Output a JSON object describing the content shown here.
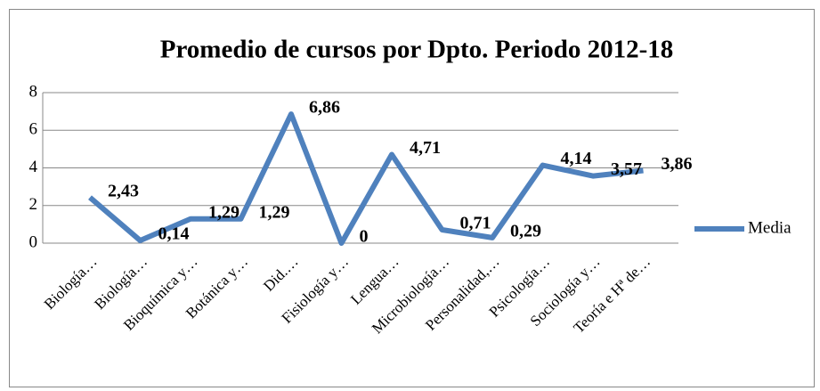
{
  "chart_data": {
    "type": "line",
    "title": "Promedio de cursos por Dpto. Periodo 2012-18",
    "categories": [
      "Biología…",
      "Biología…",
      "Bioquímica y…",
      "Botánica y…",
      "Did.…",
      "Fisiología y…",
      "Lengua…",
      "Microbiología…",
      "Personalidad,…",
      "Psicología…",
      "Sociología y…",
      "Teoría e Hª de…"
    ],
    "series": [
      {
        "name": "Media",
        "color": "#4f81bd",
        "values": [
          2.43,
          0.14,
          1.29,
          1.29,
          6.86,
          0,
          4.71,
          0.71,
          0.29,
          4.14,
          3.57,
          3.86
        ],
        "value_labels": [
          "2,43",
          "0,14",
          "1,29",
          "1,29",
          "6,86",
          "0",
          "4,71",
          "0,71",
          "0,29",
          "4,14",
          "3,57",
          "3,86"
        ]
      }
    ],
    "ylim": [
      0,
      8
    ],
    "yticks": [
      0,
      2,
      4,
      6,
      8
    ],
    "grid": true,
    "legend": "right"
  }
}
